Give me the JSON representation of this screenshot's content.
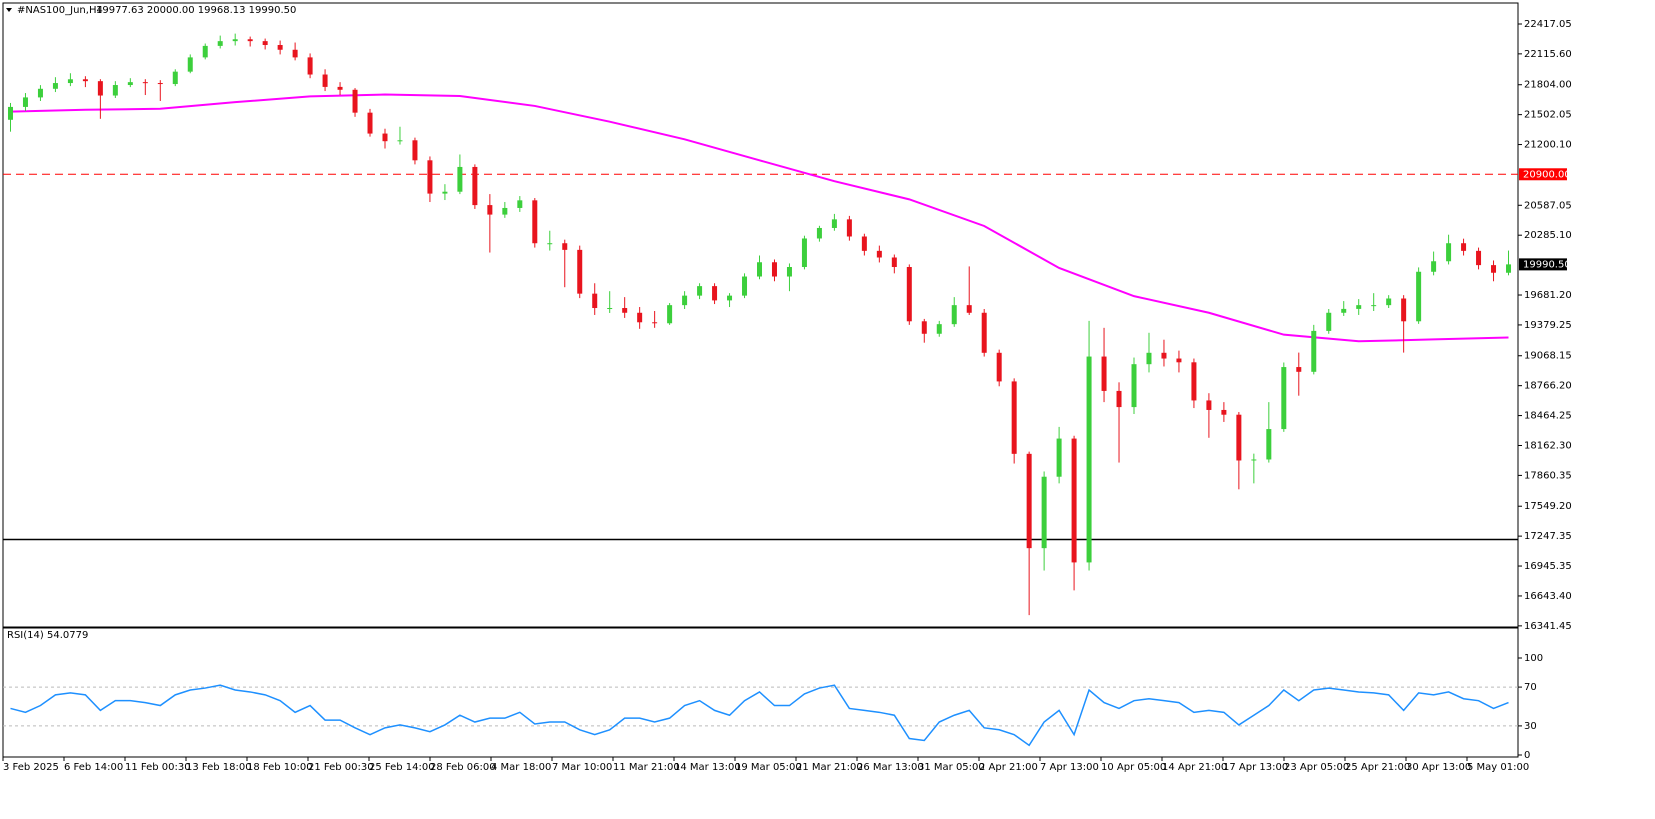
{
  "header": {
    "symbol": "#NAS100_Jun,H4",
    "quote": "19977.63 20000.00 19968.13 19990.50"
  },
  "chart_data": [
    {
      "type": "candlestick",
      "up_color": "#3ccf3c",
      "down_color": "#e8141e",
      "ylim": [
        16330,
        22629
      ],
      "yticks": [
        {
          "value": 22417.05,
          "label": "22417.05"
        },
        {
          "value": 22115.6,
          "label": "22115.60"
        },
        {
          "value": 21804,
          "label": "21804.00"
        },
        {
          "value": 21502.05,
          "label": "21502.05"
        },
        {
          "value": 21200.1,
          "label": "21200.10"
        },
        {
          "value": 20587.05,
          "label": "20587.05"
        },
        {
          "value": 20285.1,
          "label": "20285.10"
        },
        {
          "value": 19681.2,
          "label": "19681.20"
        },
        {
          "value": 19379.25,
          "label": "19379.25"
        },
        {
          "value": 19068.15,
          "label": "19068.15"
        },
        {
          "value": 18766.2,
          "label": "18766.20"
        },
        {
          "value": 18464.25,
          "label": "18464.25"
        },
        {
          "value": 18162.3,
          "label": "18162.30"
        },
        {
          "value": 17860.35,
          "label": "17860.35"
        },
        {
          "value": 17549.2,
          "label": "17549.20"
        },
        {
          "value": 17247.35,
          "label": "17247.35"
        },
        {
          "value": 16945.35,
          "label": "16945.35"
        },
        {
          "value": 16643.4,
          "label": "16643.40"
        },
        {
          "value": 16341.45,
          "label": "16341.45"
        }
      ],
      "x_labels": [
        "3 Feb 2025",
        "6 Feb 14:00",
        "11 Feb 00:30",
        "13 Feb 18:00",
        "18 Feb 10:00",
        "21 Feb 00:30",
        "25 Feb 14:00",
        "28 Feb 06:00",
        "4 Mar 18:00",
        "7 Mar 10:00",
        "11 Mar 21:00",
        "14 Mar 13:00",
        "19 Mar 05:00",
        "21 Mar 21:00",
        "26 Mar 13:00",
        "31 Mar 05:00",
        "2 Apr 21:00",
        "7 Apr 13:00",
        "10 Apr 05:00",
        "14 Apr 21:00",
        "17 Apr 13:00",
        "23 Apr 05:00",
        "25 Apr 21:00",
        "30 Apr 13:00",
        "5 May 01:00"
      ],
      "candles": [
        [
          21450,
          21620,
          21330,
          21580
        ],
        [
          21580,
          21720,
          21540,
          21676
        ],
        [
          21676,
          21800,
          21640,
          21763
        ],
        [
          21763,
          21880,
          21730,
          21821
        ],
        [
          21821,
          21920,
          21790,
          21859
        ],
        [
          21859,
          21890,
          21780,
          21840
        ],
        [
          21840,
          21860,
          21460,
          21695
        ],
        [
          21695,
          21840,
          21670,
          21801
        ],
        [
          21801,
          21870,
          21780,
          21830
        ],
        [
          21830,
          21860,
          21700,
          21821
        ],
        [
          21821,
          21850,
          21640,
          21811
        ],
        [
          21811,
          21960,
          21790,
          21936
        ],
        [
          21936,
          22110,
          21920,
          22080
        ],
        [
          22080,
          22220,
          22060,
          22196
        ],
        [
          22196,
          22300,
          22170,
          22244
        ],
        [
          22244,
          22320,
          22200,
          22263
        ],
        [
          22263,
          22290,
          22190,
          22244
        ],
        [
          22244,
          22270,
          22160,
          22205
        ],
        [
          22205,
          22250,
          22110,
          22157
        ],
        [
          22157,
          22230,
          22050,
          22080
        ],
        [
          22080,
          22120,
          21870,
          21907
        ],
        [
          21907,
          21960,
          21740,
          21782
        ],
        [
          21782,
          21830,
          21700,
          21753
        ],
        [
          21753,
          21770,
          21480,
          21522
        ],
        [
          21522,
          21560,
          21280,
          21311
        ],
        [
          21311,
          21360,
          21160,
          21234
        ],
        [
          21234,
          21380,
          21200,
          21243
        ],
        [
          21243,
          21270,
          21000,
          21041
        ],
        [
          21041,
          21080,
          20620,
          20705
        ],
        [
          20705,
          20800,
          20640,
          20724
        ],
        [
          20724,
          21100,
          20700,
          20974
        ],
        [
          20974,
          21000,
          20550,
          20589
        ],
        [
          20589,
          20700,
          20110,
          20493
        ],
        [
          20493,
          20620,
          20460,
          20560
        ],
        [
          20560,
          20680,
          20520,
          20637
        ],
        [
          20637,
          20660,
          20160,
          20204
        ],
        [
          20204,
          20330,
          20130,
          20204
        ],
        [
          20204,
          20240,
          19760,
          20137
        ],
        [
          20137,
          20180,
          19650,
          19695
        ],
        [
          19695,
          19800,
          19480,
          19550
        ],
        [
          19550,
          19720,
          19500,
          19550
        ],
        [
          19550,
          19660,
          19450,
          19502
        ],
        [
          19502,
          19560,
          19340,
          19406
        ],
        [
          19406,
          19520,
          19350,
          19396
        ],
        [
          19396,
          19600,
          19380,
          19579
        ],
        [
          19579,
          19720,
          19540,
          19675
        ],
        [
          19675,
          19800,
          19640,
          19771
        ],
        [
          19771,
          19800,
          19590,
          19627
        ],
        [
          19627,
          19700,
          19560,
          19675
        ],
        [
          19675,
          19900,
          19650,
          19868
        ],
        [
          19868,
          20080,
          19840,
          20012
        ],
        [
          20012,
          20040,
          19820,
          19868
        ],
        [
          19868,
          20000,
          19720,
          19964
        ],
        [
          19964,
          20280,
          19940,
          20252
        ],
        [
          20252,
          20380,
          20220,
          20358
        ],
        [
          20358,
          20500,
          20330,
          20445
        ],
        [
          20445,
          20480,
          20230,
          20272
        ],
        [
          20272,
          20300,
          20080,
          20127
        ],
        [
          20127,
          20180,
          20010,
          20060
        ],
        [
          20060,
          20090,
          19900,
          19964
        ],
        [
          19964,
          19990,
          19380,
          19416
        ],
        [
          19416,
          19440,
          19200,
          19290
        ],
        [
          19290,
          19420,
          19260,
          19387
        ],
        [
          19387,
          19660,
          19360,
          19579
        ],
        [
          19579,
          19970,
          19480,
          19502
        ],
        [
          19502,
          19540,
          19060,
          19098
        ],
        [
          19098,
          19130,
          18760,
          18809
        ],
        [
          18809,
          18840,
          17980,
          18078
        ],
        [
          18078,
          18100,
          16450,
          17126
        ],
        [
          17126,
          17900,
          16900,
          17847
        ],
        [
          17847,
          18350,
          17780,
          18232
        ],
        [
          18232,
          18260,
          16700,
          16982
        ],
        [
          16982,
          19420,
          16900,
          19060
        ],
        [
          19060,
          19350,
          18600,
          18713
        ],
        [
          18713,
          18800,
          17990,
          18550
        ],
        [
          18550,
          19050,
          18480,
          18983
        ],
        [
          18983,
          19300,
          18900,
          19098
        ],
        [
          19098,
          19230,
          18960,
          19040
        ],
        [
          19040,
          19120,
          18900,
          19002
        ],
        [
          19002,
          19040,
          18540,
          18617
        ],
        [
          18617,
          18690,
          18240,
          18521
        ],
        [
          18521,
          18600,
          18400,
          18473
        ],
        [
          18473,
          18500,
          17720,
          18011
        ],
        [
          18011,
          18080,
          17780,
          18021
        ],
        [
          18021,
          18600,
          17990,
          18328
        ],
        [
          18328,
          19000,
          18300,
          18954
        ],
        [
          18954,
          19100,
          18665,
          18906
        ],
        [
          18906,
          19380,
          18880,
          19319
        ],
        [
          19319,
          19540,
          19290,
          19502
        ],
        [
          19502,
          19620,
          19470,
          19541
        ],
        [
          19541,
          19640,
          19480,
          19579
        ],
        [
          19579,
          19700,
          19520,
          19579
        ],
        [
          19579,
          19680,
          19550,
          19646
        ],
        [
          19646,
          19680,
          19100,
          19416
        ],
        [
          19416,
          19960,
          19390,
          19916
        ],
        [
          19916,
          20120,
          19880,
          20022
        ],
        [
          20022,
          20290,
          19990,
          20204
        ],
        [
          20204,
          20250,
          20080,
          20127
        ],
        [
          20127,
          20160,
          19940,
          19983
        ],
        [
          19983,
          20030,
          19820,
          19906
        ],
        [
          19906,
          20130,
          19880,
          19990.5
        ]
      ],
      "moving_average": {
        "color": "#ff00ff",
        "x": [
          0,
          5,
          10,
          15,
          20,
          25,
          30,
          35,
          40,
          45,
          50,
          55,
          60,
          65,
          70,
          75,
          80,
          85,
          90,
          95,
          100
        ],
        "values": [
          21532,
          21551,
          21561,
          21628,
          21686,
          21705,
          21690,
          21590,
          21431,
          21253,
          21041,
          20830,
          20647,
          20378,
          19954,
          19670,
          19502,
          19281,
          19214,
          19233,
          19252
        ]
      },
      "hlines": [
        {
          "value": 20900,
          "label": "20900.00",
          "color": "#ff0000",
          "style": "dashed"
        },
        {
          "value": 17213,
          "color": "#000000",
          "style": "solid"
        }
      ],
      "last_price": {
        "value": 19990.5,
        "label": "19990.50"
      }
    },
    {
      "type": "line",
      "title": "RSI(14)",
      "color": "#1e90ff",
      "ylim": [
        0,
        100
      ],
      "yticks": [
        0,
        30,
        70,
        100
      ],
      "levels": [
        30,
        70
      ],
      "values": [
        48,
        44,
        51,
        62,
        64,
        62,
        46,
        56,
        56,
        54,
        51,
        62,
        67,
        69,
        72,
        67,
        65,
        62,
        56,
        44,
        51,
        36,
        36,
        28,
        21,
        28,
        31,
        28,
        24,
        31,
        41,
        34,
        38,
        38,
        44,
        32,
        34,
        34,
        26,
        21,
        26,
        38,
        38,
        34,
        38,
        51,
        56,
        46,
        41,
        56,
        65,
        51,
        51,
        63,
        69,
        72,
        48,
        46,
        44,
        41,
        17,
        15,
        34,
        41,
        46,
        28,
        26,
        21,
        10,
        34,
        46,
        21,
        67,
        54,
        48,
        56,
        58,
        56,
        54,
        44,
        46,
        44,
        31,
        41,
        51,
        67,
        56,
        67,
        69,
        67,
        65,
        64,
        62,
        46,
        64,
        62,
        65,
        58,
        56,
        48,
        54.0779
      ]
    }
  ]
}
